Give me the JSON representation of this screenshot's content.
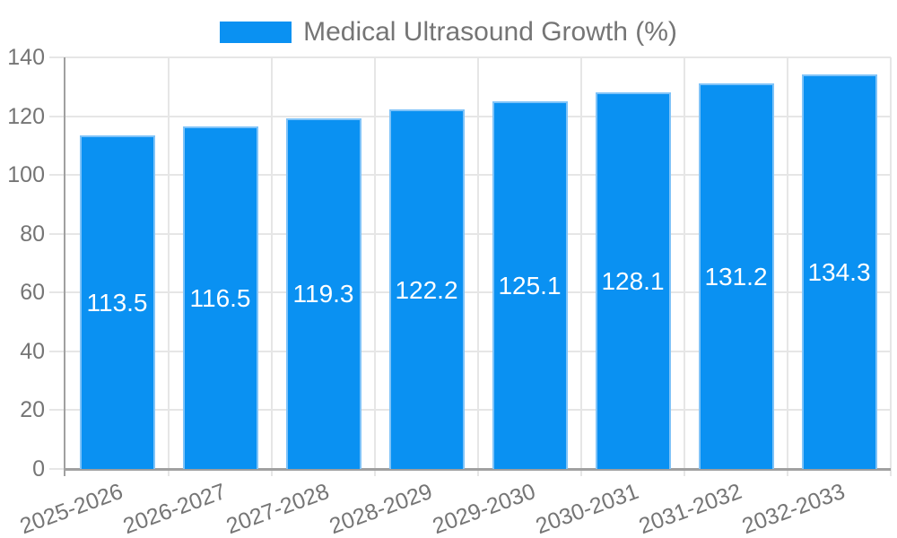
{
  "chart_data": {
    "type": "bar",
    "title": "Medical Ultrasound Growth (%)",
    "categories": [
      "2025-2026",
      "2026-2027",
      "2027-2028",
      "2028-2029",
      "2029-2030",
      "2030-2031",
      "2031-2032",
      "2032-2033"
    ],
    "series": [
      {
        "name": "Medical Ultrasound Growth (%)",
        "values": [
          113.5,
          116.5,
          119.3,
          122.2,
          125.1,
          128.1,
          131.2,
          134.3
        ]
      }
    ],
    "value_labels": [
      "113.5",
      "116.5",
      "119.3",
      "122.2",
      "125.1",
      "128.1",
      "131.2",
      "134.3"
    ],
    "xlabel": "",
    "ylabel": "",
    "ylim": [
      0,
      140
    ],
    "yticks": [
      0,
      20,
      40,
      60,
      80,
      100,
      120,
      140
    ],
    "grid": true,
    "legend_position": "top",
    "x_label_rotation_deg": -20,
    "colors": {
      "bar": "#0a91f2",
      "bar_border": "#7fc3f8",
      "grid": "#e6e6e6",
      "axis": "#a0a0a0",
      "text": "#757575",
      "value_text": "#ffffff",
      "background": "#ffffff"
    }
  }
}
